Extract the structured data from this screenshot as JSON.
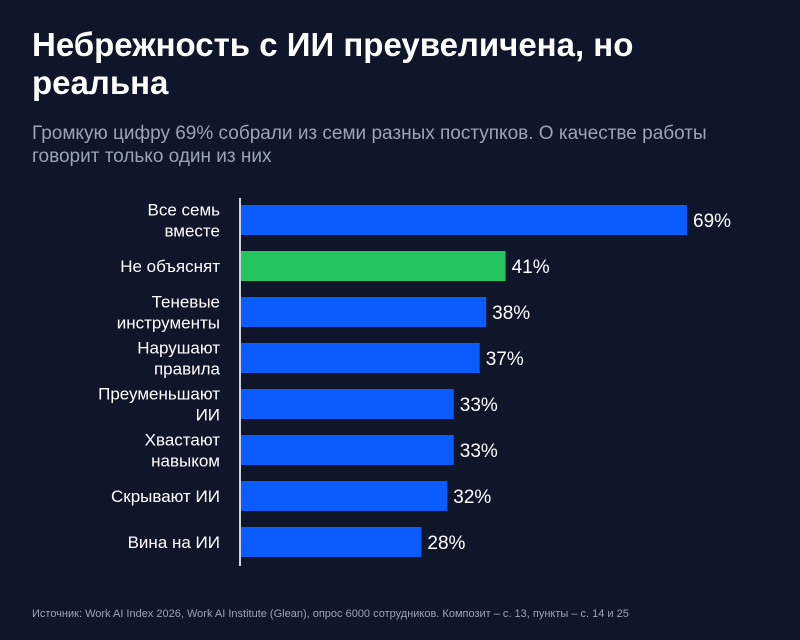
{
  "title": "Небрежность с ИИ преувеличена, но реальна",
  "subtitle": "Громкую цифру 69% собрали из семи разных поступков. О качестве работы говорит только один из них",
  "source": "Источник: Work AI Index 2026, Work AI Institute (Glean), опрос 6000 сотрудников. Композит – с. 13, пункты – с. 14 и 25",
  "colors": {
    "background": "#0f1629",
    "bar": "#0b5cff",
    "highlight": "#22c55e",
    "axis": "#d0d4dc",
    "label": "#ffffff",
    "muted": "#9aa4b5"
  },
  "chart_data": {
    "type": "bar",
    "orientation": "horizontal",
    "unit": "%",
    "xlim": [
      0,
      69
    ],
    "grid": false,
    "highlight_index": 1,
    "categories": [
      [
        "Все семь",
        "вместе"
      ],
      [
        "Не объяснят"
      ],
      [
        "Теневые",
        "инструменты"
      ],
      [
        "Нарушают",
        "правила"
      ],
      [
        "Преуменьшают",
        "ИИ"
      ],
      [
        "Хвастают",
        "навыком"
      ],
      [
        "Скрывают ИИ"
      ],
      [
        "Вина на ИИ"
      ]
    ],
    "values": [
      69,
      41,
      38,
      37,
      33,
      33,
      32,
      28
    ],
    "value_labels": [
      "69%",
      "41%",
      "38%",
      "37%",
      "33%",
      "33%",
      "32%",
      "28%"
    ]
  }
}
